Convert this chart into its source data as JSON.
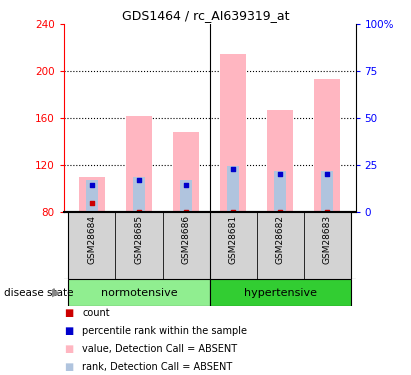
{
  "title": "GDS1464 / rc_AI639319_at",
  "samples": [
    "GSM28684",
    "GSM28685",
    "GSM28686",
    "GSM28681",
    "GSM28682",
    "GSM28683"
  ],
  "group_labels": [
    "normotensive",
    "hypertensive"
  ],
  "ylim_left": [
    80,
    240
  ],
  "ylim_right": [
    0,
    100
  ],
  "yticks_left": [
    80,
    120,
    160,
    200,
    240
  ],
  "yticks_right": [
    0,
    25,
    50,
    75,
    100
  ],
  "yright_labels": [
    "0",
    "25",
    "50",
    "75",
    "100%"
  ],
  "bar_bottom": 80,
  "value_absent": [
    110,
    162,
    148,
    215,
    167,
    193
  ],
  "rank_absent": [
    107,
    110,
    107,
    119,
    115,
    115
  ],
  "count_vals": [
    88,
    80,
    80,
    80,
    80,
    80
  ],
  "percentile_vals": [
    103,
    107,
    103,
    117,
    112,
    112
  ],
  "bar_color_absent": "#FFB6C1",
  "rank_color_absent": "#B0C4DE",
  "count_color": "#CC0000",
  "percentile_color": "#0000CC",
  "legend_items": [
    {
      "color": "#CC0000",
      "label": "count"
    },
    {
      "color": "#0000CC",
      "label": "percentile rank within the sample"
    },
    {
      "color": "#FFB6C1",
      "label": "value, Detection Call = ABSENT"
    },
    {
      "color": "#B0C4DE",
      "label": "rank, Detection Call = ABSENT"
    }
  ],
  "background_color": "#ffffff",
  "sample_bg_color": "#D3D3D3",
  "normo_bg": "#90EE90",
  "hyper_bg": "#32CD32"
}
